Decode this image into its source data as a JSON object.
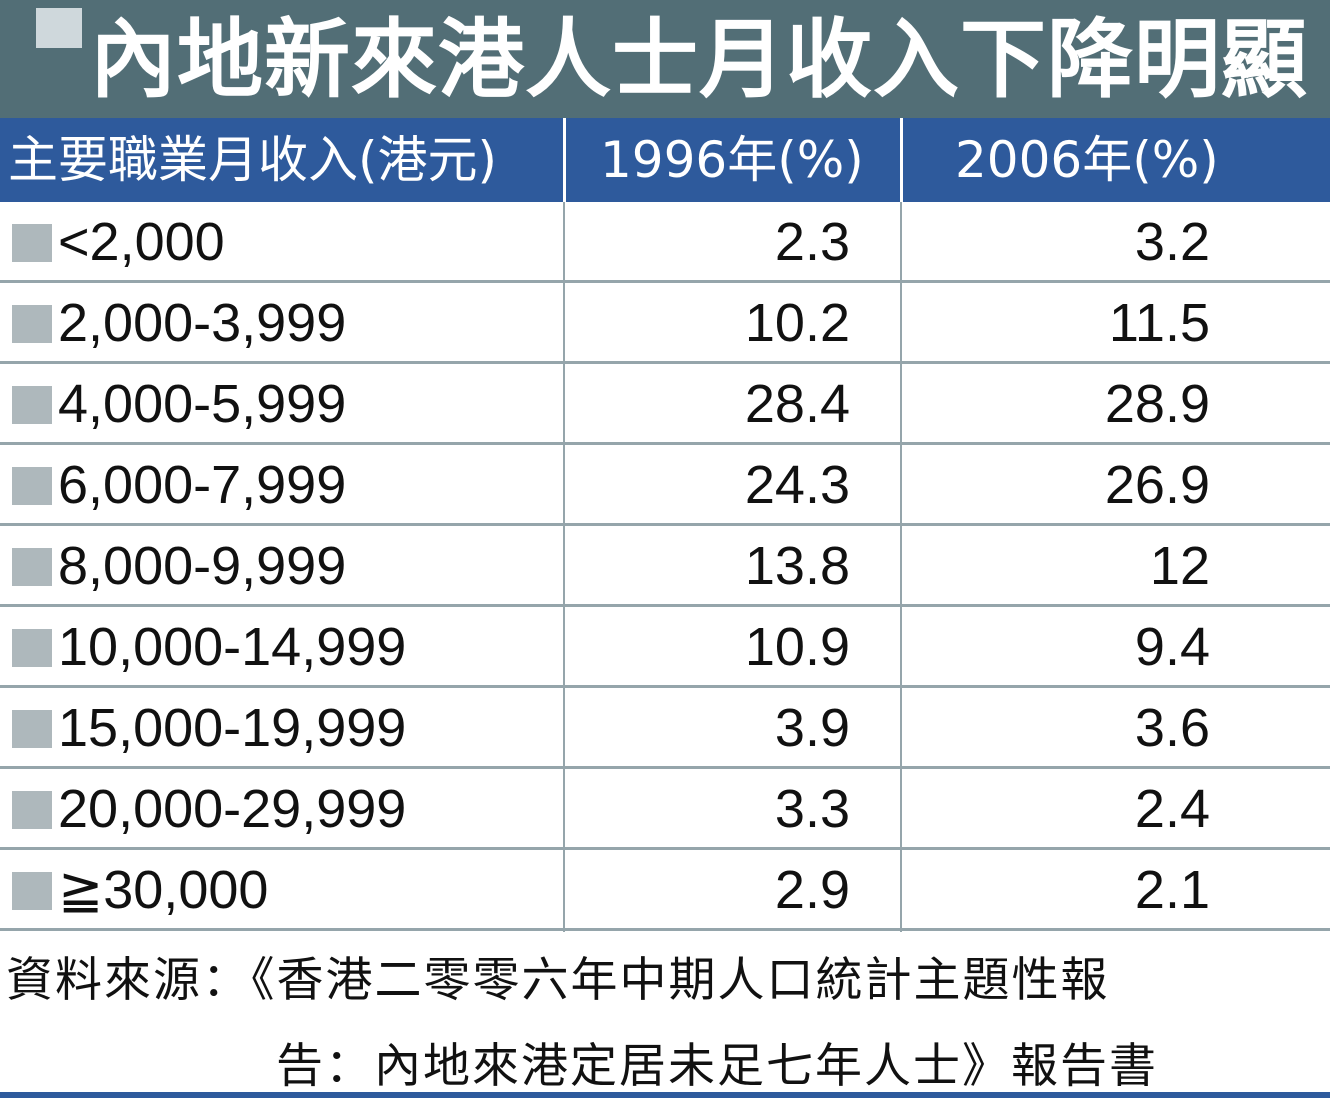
{
  "title": "內地新來港人士月收入下降明顯",
  "chart_data": {
    "type": "table",
    "title": "內地新來港人士月收入下降明顯",
    "columns": [
      "主要職業月收入(港元)",
      "1996年(%)",
      "2006年(%)"
    ],
    "rows": [
      {
        "label": "<2,000",
        "v1996": "2.3",
        "v2006": "3.2"
      },
      {
        "label": "2,000-3,999",
        "v1996": "10.2",
        "v2006": "11.5"
      },
      {
        "label": "4,000-5,999",
        "v1996": "28.4",
        "v2006": "28.9"
      },
      {
        "label": "6,000-7,999",
        "v1996": "24.3",
        "v2006": "26.9"
      },
      {
        "label": "8,000-9,999",
        "v1996": "13.8",
        "v2006": "12"
      },
      {
        "label": "10,000-14,999",
        "v1996": "10.9",
        "v2006": "9.4"
      },
      {
        "label": "15,000-19,999",
        "v1996": "3.9",
        "v2006": "3.6"
      },
      {
        "label": "20,000-29,999",
        "v1996": "3.3",
        "v2006": "2.4"
      },
      {
        "label": "≧30,000",
        "v1996": "2.9",
        "v2006": "2.1"
      }
    ]
  },
  "source": {
    "line1": "資料來源：《香港二零零六年中期人口統計主題性報",
    "line2": "告：內地來港定居未足七年人士》報告書"
  },
  "colors": {
    "title_bg": "#526e76",
    "header_bg": "#2e5a9c",
    "row_marker": "#aeb8bc",
    "row_rule": "#95a5ab"
  }
}
